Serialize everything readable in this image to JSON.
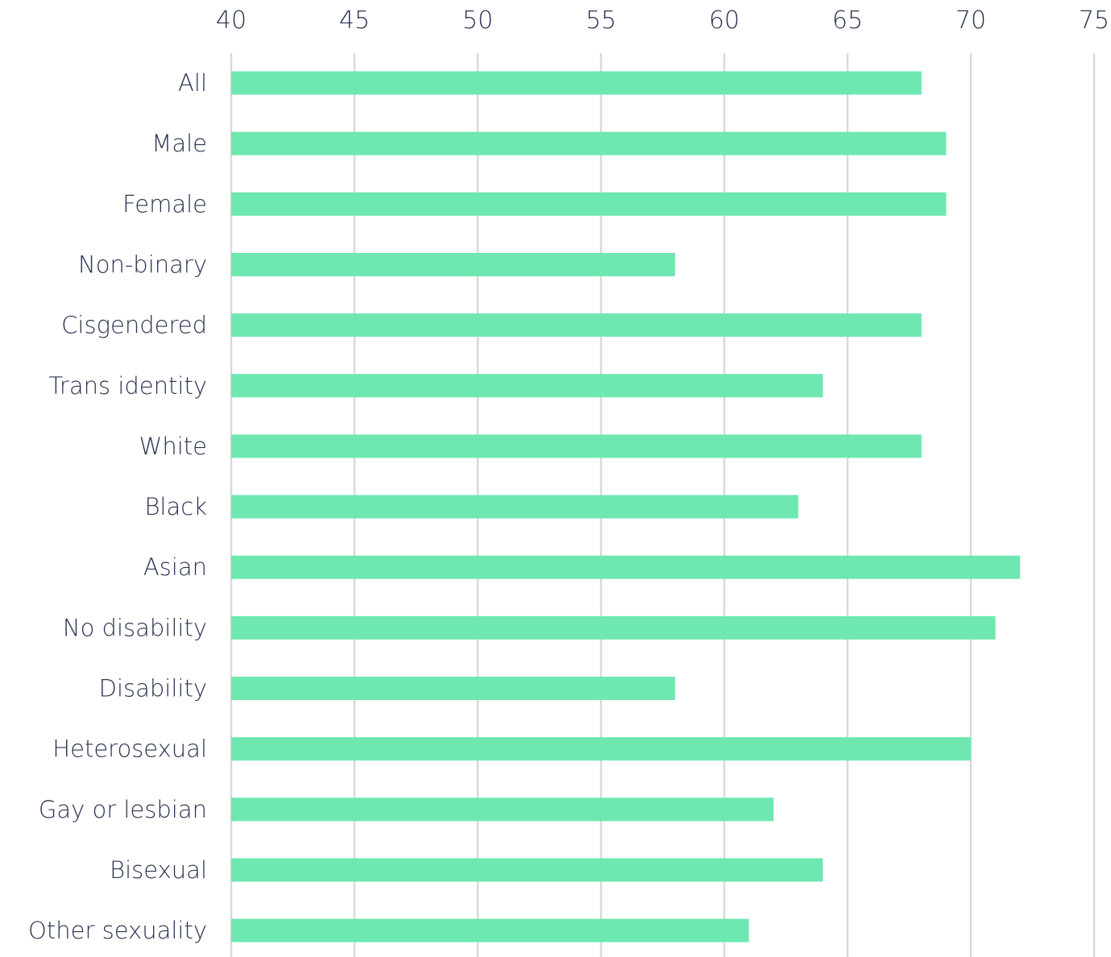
{
  "chart_data": {
    "type": "bar",
    "orientation": "horizontal",
    "categories": [
      "All",
      "Male",
      "Female",
      "Non-binary",
      "Cisgendered",
      "Trans identity",
      "White",
      "Black",
      "Asian",
      "No disability",
      "Disability",
      "Heterosexual",
      "Gay or lesbian",
      "Bisexual",
      "Other sexuality"
    ],
    "values": [
      68,
      69,
      69,
      58,
      68,
      64,
      68,
      63,
      72,
      71,
      58,
      70,
      62,
      64,
      61
    ],
    "xlim": [
      40,
      75
    ],
    "x_ticks": [
      40,
      45,
      50,
      55,
      60,
      65,
      70,
      75
    ],
    "x_axis_position": "top",
    "grid": true,
    "legend": "none",
    "bar_color": "#6ee8b0",
    "grid_color": "#d9d9d9",
    "text_color": "#2b3350"
  }
}
